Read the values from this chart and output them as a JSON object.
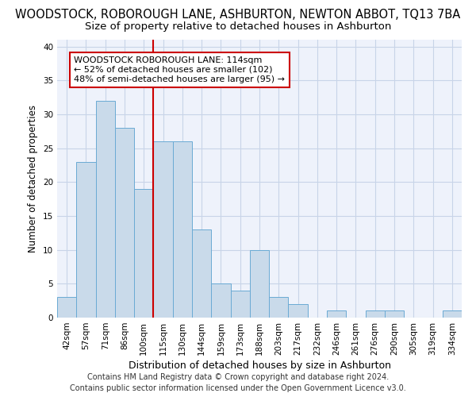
{
  "title": "WOODSTOCK, ROBOROUGH LANE, ASHBURTON, NEWTON ABBOT, TQ13 7BA",
  "subtitle": "Size of property relative to detached houses in Ashburton",
  "xlabel": "Distribution of detached houses by size in Ashburton",
  "ylabel": "Number of detached properties",
  "categories": [
    "42sqm",
    "57sqm",
    "71sqm",
    "86sqm",
    "100sqm",
    "115sqm",
    "130sqm",
    "144sqm",
    "159sqm",
    "173sqm",
    "188sqm",
    "203sqm",
    "217sqm",
    "232sqm",
    "246sqm",
    "261sqm",
    "276sqm",
    "290sqm",
    "305sqm",
    "319sqm",
    "334sqm"
  ],
  "values": [
    3,
    23,
    32,
    28,
    19,
    26,
    26,
    13,
    5,
    4,
    10,
    3,
    2,
    0,
    1,
    0,
    1,
    1,
    0,
    0,
    1
  ],
  "bar_color": "#c9daea",
  "bar_edge_color": "#6aaad4",
  "grid_color": "#c8d4e8",
  "background_color": "#eef2fb",
  "vline_x_index": 4.5,
  "vline_color": "#cc0000",
  "annotation_text": "WOODSTOCK ROBOROUGH LANE: 114sqm\n← 52% of detached houses are smaller (102)\n48% of semi-detached houses are larger (95) →",
  "annotation_box_color": "#ffffff",
  "annotation_box_edge_color": "#cc0000",
  "footer_line1": "Contains HM Land Registry data © Crown copyright and database right 2024.",
  "footer_line2": "Contains public sector information licensed under the Open Government Licence v3.0.",
  "ylim": [
    0,
    41
  ],
  "title_fontsize": 10.5,
  "subtitle_fontsize": 9.5,
  "xlabel_fontsize": 9,
  "ylabel_fontsize": 8.5,
  "tick_fontsize": 7.5,
  "annotation_fontsize": 8,
  "footer_fontsize": 7
}
